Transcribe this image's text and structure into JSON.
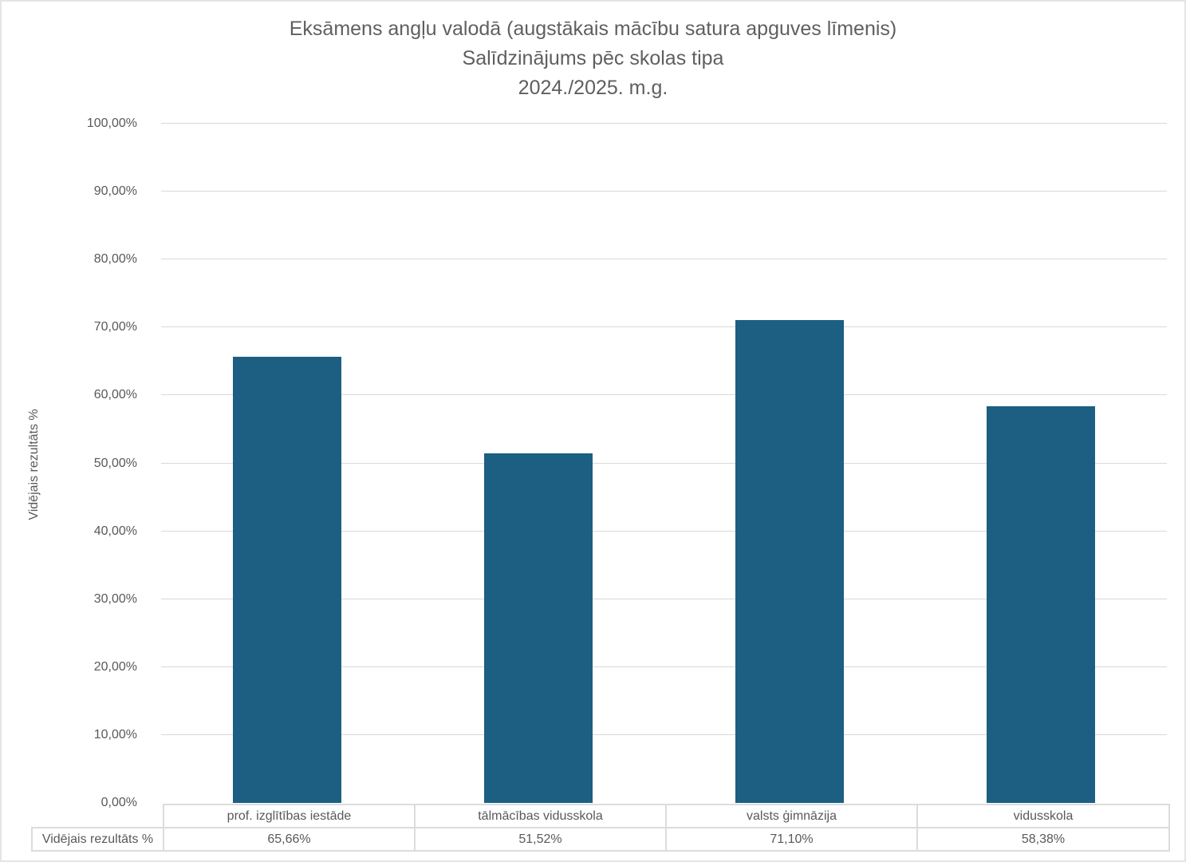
{
  "chart_data": {
    "type": "bar",
    "title": "Eksāmens angļu valodā (augstākais mācību satura apguves līmenis)",
    "subtitle": "Salīdzinājums pēc skolas tipa",
    "period": "2024./2025.  m.g.",
    "ylabel": "Vidējais rezultāts %",
    "categories": [
      "prof. izglītības iestāde",
      "tālmācības vidusskola",
      "valsts ģimnāzija",
      "vidusskola"
    ],
    "series": [
      {
        "name": "Vidējais rezultāts %",
        "values": [
          65.66,
          51.52,
          71.1,
          58.38
        ],
        "display_values": [
          "65,66%",
          "51,52%",
          "71,10%",
          "58,38%"
        ]
      }
    ],
    "ylim": [
      0,
      100
    ],
    "ytick_step": 10,
    "ytick_labels": [
      "0,00%",
      "10,00%",
      "20,00%",
      "30,00%",
      "40,00%",
      "50,00%",
      "60,00%",
      "70,00%",
      "80,00%",
      "90,00%",
      "100,00%"
    ],
    "grid": true,
    "legend_position": "none",
    "bar_color": "#1C5F83",
    "gridline_color": "#D9D9D9",
    "text_color": "#595959",
    "data_table": {
      "row_header": "Vidējais rezultāts %",
      "columns": [
        "prof. izglītības iestāde",
        "tālmācības vidusskola",
        "valsts ģimnāzija",
        "vidusskola"
      ],
      "values": [
        "65,66%",
        "51,52%",
        "71,10%",
        "58,38%"
      ]
    }
  }
}
